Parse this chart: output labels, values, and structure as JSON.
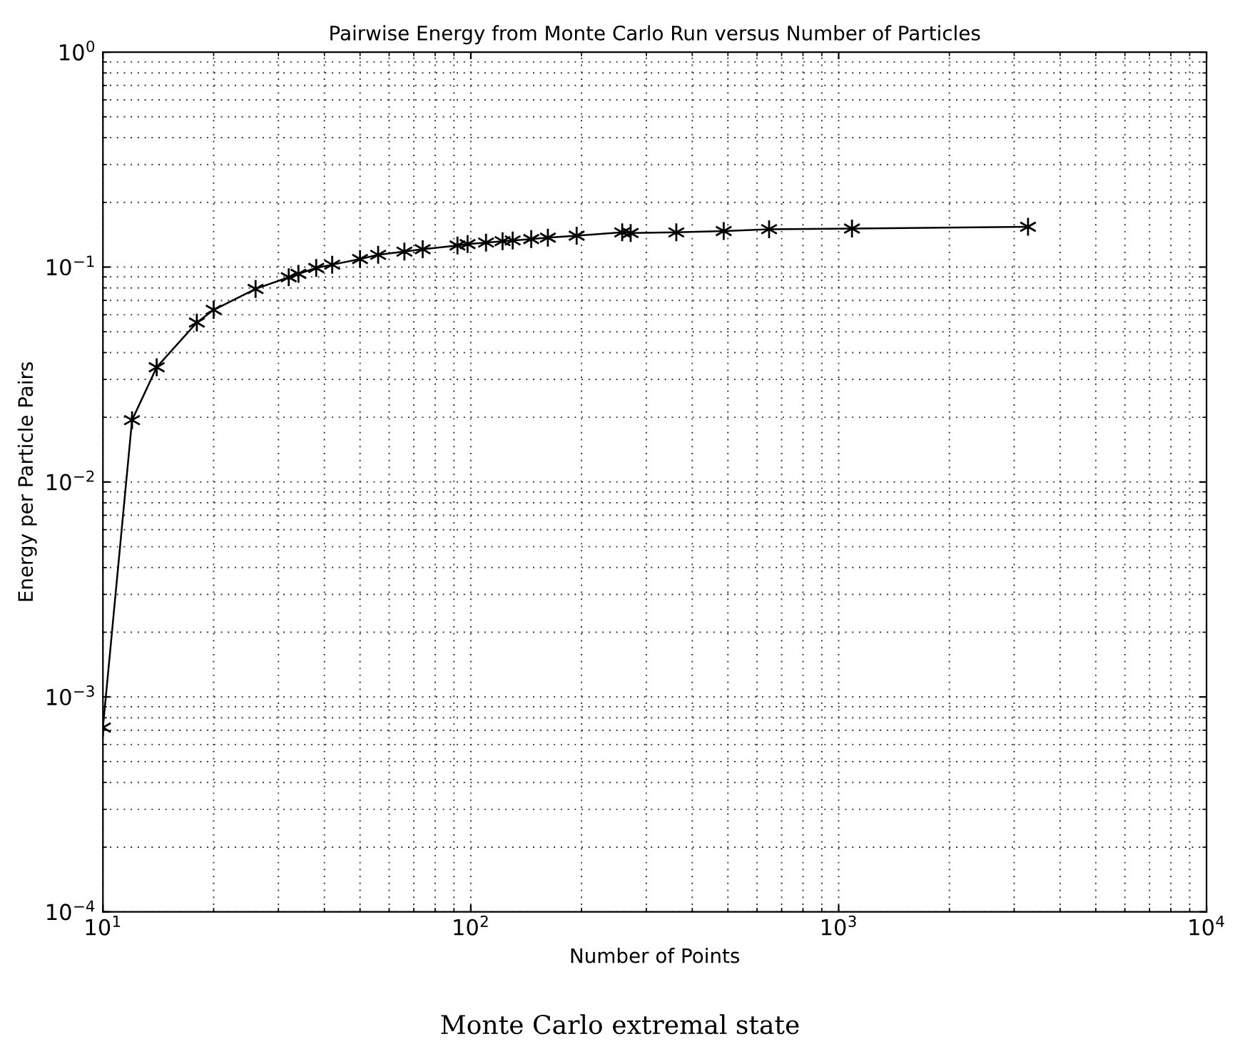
{
  "chart_data": {
    "type": "line",
    "title": "Pairwise Energy from Monte Carlo Run versus Number of Particles",
    "xlabel": "Number of Points",
    "ylabel": "Energy per Particle Pairs",
    "annotations": [
      "Monte Carlo extremal state"
    ],
    "log": "xy",
    "grid": true,
    "marker": "cross",
    "line_style": "solid",
    "legend": false,
    "xlim": [
      10,
      10000
    ],
    "ylim": [
      0.0001,
      1
    ],
    "xticks": [
      {
        "value": 10,
        "label": "10$^{1}$"
      },
      {
        "value": 100,
        "label": "10$^{2}$"
      },
      {
        "value": 1000,
        "label": "10$^{3}$"
      },
      {
        "value": 10000,
        "label": "10$^{4}$"
      }
    ],
    "yticks": [
      {
        "value": 0.0001,
        "label": "10$^{−4}$"
      },
      {
        "value": 0.001,
        "label": "10$^{−3}$"
      },
      {
        "value": 0.01,
        "label": "10$^{−2}$"
      },
      {
        "value": 0.1,
        "label": "10$^{−1}$"
      },
      {
        "value": 1,
        "label": "10$^{0}$"
      }
    ],
    "series": [
      {
        "color": "#000000",
        "x": [
          10,
          12,
          14,
          18,
          20,
          26,
          32,
          34,
          38,
          42,
          50,
          56,
          66,
          74,
          92,
          98,
          110,
          122,
          130,
          146,
          162,
          194,
          258,
          272,
          362,
          487,
          647,
          1087,
          3272
        ],
        "values": [
          0.00072,
          0.0194,
          0.0342,
          0.0552,
          0.0632,
          0.0791,
          0.0897,
          0.093,
          0.099,
          0.1026,
          0.109,
          0.114,
          0.118,
          0.121,
          0.126,
          0.128,
          0.13,
          0.132,
          0.133,
          0.135,
          0.137,
          0.14,
          0.145,
          0.144,
          0.145,
          0.147,
          0.15,
          0.151,
          0.154
        ]
      }
    ]
  }
}
